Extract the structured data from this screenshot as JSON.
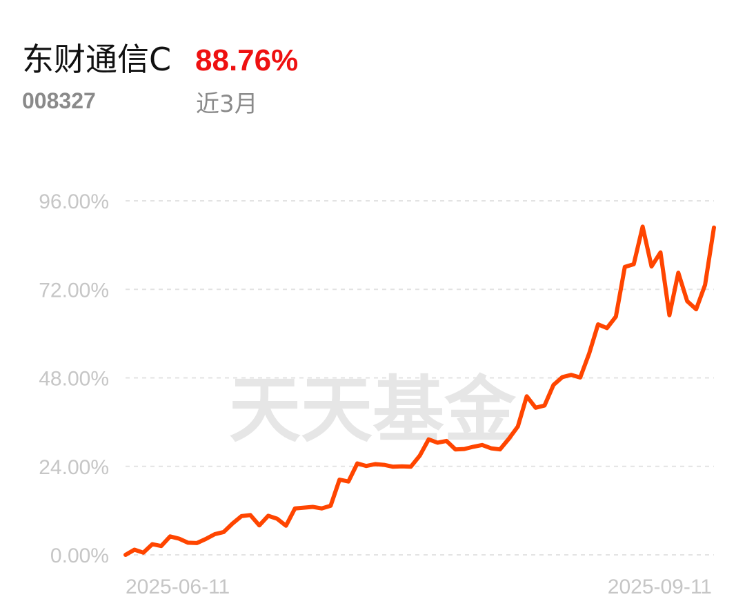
{
  "header": {
    "fund_name": "东财通信C",
    "return_value": "88.76%",
    "fund_code": "008327",
    "period": "近3月"
  },
  "watermark": "天天基金",
  "colors": {
    "line": "#ff4500",
    "return_text": "#ee1111",
    "grid": "#e3e3e3",
    "tick_text": "#c6c6c6"
  },
  "chart_data": {
    "type": "line",
    "title": "",
    "xlabel": "",
    "ylabel": "",
    "ylim": [
      0,
      96
    ],
    "y_ticks": [
      0,
      24,
      48,
      72,
      96
    ],
    "y_tick_labels": [
      "0.00%",
      "24.00%",
      "48.00%",
      "72.00%",
      "96.00%"
    ],
    "x_tick_labels": [
      "2025-06-11",
      "2025-09-11"
    ],
    "grid": true,
    "series": [
      {
        "values": [
          0.0,
          1.4,
          0.6,
          2.9,
          2.4,
          5.0,
          4.4,
          3.3,
          3.2,
          4.3,
          5.6,
          6.2,
          8.5,
          10.5,
          10.8,
          8.0,
          10.6,
          9.8,
          7.9,
          12.6,
          12.8,
          13.0,
          12.6,
          13.3,
          20.4,
          19.9,
          24.8,
          24.1,
          24.6,
          24.4,
          23.9,
          24.0,
          23.9,
          26.9,
          31.3,
          30.4,
          30.9,
          28.6,
          28.7,
          29.3,
          29.8,
          28.9,
          28.6,
          31.5,
          34.8,
          43.0,
          39.9,
          40.5,
          46.1,
          48.2,
          48.8,
          48.1,
          54.6,
          62.5,
          61.5,
          64.6,
          78.1,
          78.8,
          89.0,
          78.2,
          82.0,
          65.0,
          76.5,
          68.8,
          66.6,
          73.2,
          88.76
        ]
      }
    ]
  }
}
